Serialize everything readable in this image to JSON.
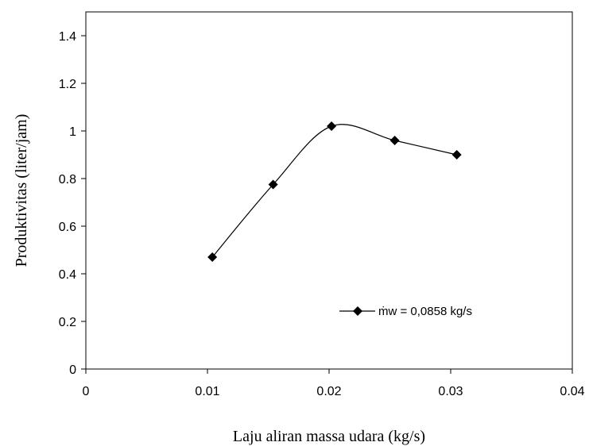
{
  "chart_data": {
    "type": "line",
    "title": "",
    "xlabel": "Laju aliran massa udara (kg/s)",
    "ylabel": "Produktivitas (liter/jam)",
    "xlim": [
      0,
      0.04
    ],
    "ylim": [
      0,
      1.5
    ],
    "x_ticks": [
      0,
      0.01,
      0.02,
      0.03,
      0.04
    ],
    "x_tick_labels": [
      "0",
      "0.01",
      "0.02",
      "0.03",
      "0.04"
    ],
    "y_ticks": [
      0,
      0.2,
      0.4,
      0.6,
      0.8,
      1.0,
      1.2,
      1.4
    ],
    "y_tick_labels": [
      "0",
      "0.2",
      "0.4",
      "0.6",
      "0.8",
      "1",
      "1.2",
      "1.4"
    ],
    "grid": false,
    "smooth": true,
    "legend_position": "bottom-right",
    "series": [
      {
        "name": "ṁw = 0,0858 kg/s",
        "marker": "diamond",
        "color": "#000000",
        "x": [
          0.0104,
          0.0154,
          0.0202,
          0.0254,
          0.0305
        ],
        "y": [
          0.47,
          0.775,
          1.02,
          0.96,
          0.9
        ]
      }
    ]
  }
}
